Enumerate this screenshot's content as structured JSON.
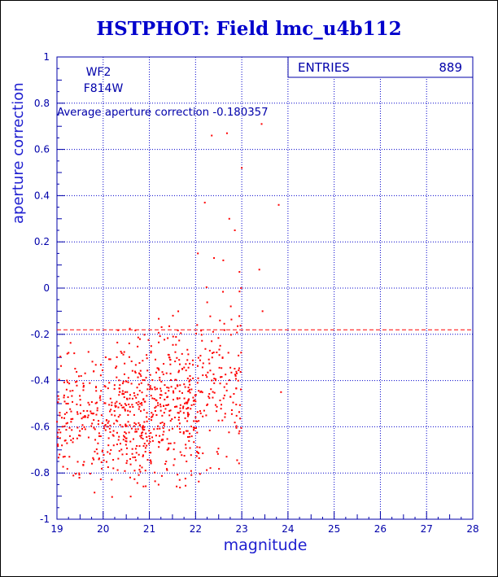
{
  "chart_data": {
    "type": "scatter",
    "title": "HSTPHOT: Field lmc_u4b112",
    "xlabel": "magnitude",
    "ylabel": "aperture correction",
    "xlim": [
      19,
      28
    ],
    "ylim": [
      -1,
      1
    ],
    "x_ticks": [
      "19",
      "20",
      "21",
      "22",
      "23",
      "24",
      "25",
      "26",
      "27",
      "28"
    ],
    "y_ticks": [
      "-1",
      "-0.8",
      "-0.6",
      "-0.4",
      "-0.2",
      "0",
      "0.2",
      "0.4",
      "0.6",
      "0.8",
      "1"
    ],
    "grid": true,
    "annotations": {
      "chip": "WF2",
      "filter": "F814W",
      "average_text": "Average aperture correction -0.180357"
    },
    "stats_box": {
      "label": "ENTRIES",
      "value": "889"
    },
    "average_line_y": -0.180357,
    "colors": {
      "points": "#ff0000",
      "axes": "#0000aa",
      "grid": "#0000cc",
      "title": "#0000cc",
      "average_line": "#ff0000"
    },
    "notable_points": [
      {
        "x": 22.35,
        "y": 0.66
      },
      {
        "x": 22.68,
        "y": 0.67
      },
      {
        "x": 23.43,
        "y": 0.71
      },
      {
        "x": 23.8,
        "y": 0.36
      },
      {
        "x": 22.73,
        "y": 0.3
      },
      {
        "x": 22.85,
        "y": 0.25
      },
      {
        "x": 23.0,
        "y": 0.52
      },
      {
        "x": 23.38,
        "y": 0.08
      },
      {
        "x": 23.45,
        "y": -0.1
      },
      {
        "x": 23.85,
        "y": -0.45
      },
      {
        "x": 22.2,
        "y": 0.37
      },
      {
        "x": 22.05,
        "y": 0.15
      },
      {
        "x": 22.4,
        "y": 0.13
      },
      {
        "x": 22.6,
        "y": 0.12
      },
      {
        "x": 22.95,
        "y": 0.07
      }
    ],
    "dense_regions": [
      {
        "x_range": [
          19.0,
          20.3
        ],
        "y_range": [
          -0.97,
          -0.14
        ],
        "count": 230
      },
      {
        "x_range": [
          20.3,
          21.2
        ],
        "y_range": [
          -0.97,
          -0.1
        ],
        "count": 260
      },
      {
        "x_range": [
          21.2,
          22.1
        ],
        "y_range": [
          -0.97,
          -0.02
        ],
        "count": 250
      },
      {
        "x_range": [
          22.1,
          23.0
        ],
        "y_range": [
          -0.9,
          0.1
        ],
        "count": 134
      }
    ]
  }
}
